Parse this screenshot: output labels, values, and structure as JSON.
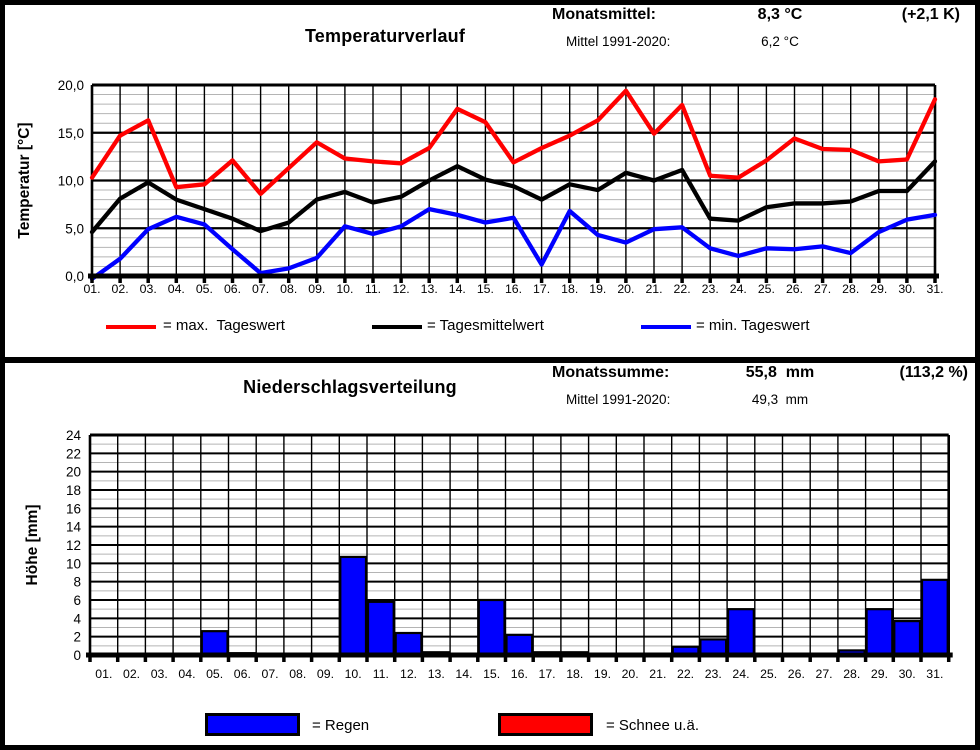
{
  "temperature_panel": {
    "title": "Temperaturverlauf",
    "stats": {
      "label": "Monatsmittel:",
      "value": "8,3 °C",
      "anomaly": "(+2,1 K)",
      "ref_label": "Mittel 1991-2020:",
      "ref_value": "6,2 °C"
    },
    "legend": {
      "max_label": "= max.  Tageswert",
      "mean_label": "= Tagesmittelwert",
      "min_label": "= min. Tageswert",
      "max_color": "#ff0000",
      "mean_color": "#000000",
      "min_color": "#0000ff"
    }
  },
  "precipitation_panel": {
    "title": "Niederschlagsverteilung",
    "stats": {
      "label": "Monatssumme:",
      "value": "55,8  mm",
      "anomaly": "(113,2 %)",
      "ref_label": "Mittel 1991-2020:",
      "ref_value": "49,3  mm"
    },
    "legend": {
      "rain_label": "= Regen",
      "snow_label": "= Schnee u.ä.",
      "rain_color": "#0000ff",
      "snow_color": "#ff0000"
    }
  },
  "chart_data": [
    {
      "type": "line",
      "title": "Temperaturverlauf",
      "xlabel": "",
      "ylabel": "Temperatur [°C]",
      "ylim": [
        0,
        20
      ],
      "y_major_step": 5,
      "y_minor_step": 1,
      "grid": true,
      "legend_position": "bottom",
      "y_ticks": [
        {
          "v": 0,
          "label": "0,0"
        },
        {
          "v": 5,
          "label": "5,0"
        },
        {
          "v": 10,
          "label": "10,0"
        },
        {
          "v": 15,
          "label": "15,0"
        },
        {
          "v": 20,
          "label": "20,0"
        }
      ],
      "categories": [
        "01.",
        "02.",
        "03.",
        "04.",
        "05.",
        "06.",
        "07.",
        "08.",
        "09.",
        "10.",
        "11.",
        "12.",
        "13.",
        "14.",
        "15.",
        "16.",
        "17.",
        "18.",
        "19.",
        "20.",
        "21.",
        "22.",
        "23.",
        "24.",
        "25.",
        "26.",
        "27.",
        "28.",
        "29.",
        "30.",
        "31."
      ],
      "series": [
        {
          "name": "max. Tageswert",
          "color": "#ff0000",
          "values": [
            10.3,
            14.7,
            16.3,
            9.3,
            9.6,
            12.1,
            8.6,
            11.3,
            14.0,
            12.3,
            12.0,
            11.8,
            13.4,
            17.5,
            16.1,
            11.9,
            13.4,
            14.7,
            16.3,
            19.4,
            14.9,
            17.9,
            10.5,
            10.3,
            12.1,
            14.4,
            13.3,
            13.2,
            12.0,
            12.2,
            18.5
          ]
        },
        {
          "name": "Tagesmittelwert",
          "color": "#000000",
          "values": [
            4.6,
            8.1,
            9.8,
            8.0,
            7.0,
            6.0,
            4.7,
            5.6,
            8.0,
            8.8,
            7.7,
            8.3,
            10.0,
            11.5,
            10.1,
            9.4,
            8.0,
            9.6,
            9.0,
            10.8,
            10.0,
            11.1,
            6.0,
            5.8,
            7.2,
            7.6,
            7.6,
            7.8,
            8.9,
            8.9,
            12.0
          ]
        },
        {
          "name": "min. Tageswert",
          "color": "#0000ff",
          "values": [
            -0.3,
            1.8,
            4.9,
            6.2,
            5.4,
            2.8,
            0.3,
            0.8,
            1.9,
            5.2,
            4.4,
            5.2,
            7.0,
            6.4,
            5.6,
            6.1,
            1.2,
            6.8,
            4.3,
            3.5,
            4.9,
            5.1,
            2.9,
            2.1,
            2.9,
            2.8,
            3.1,
            2.4,
            4.6,
            5.9,
            6.4
          ]
        }
      ]
    },
    {
      "type": "bar",
      "title": "Niederschlagsverteilung",
      "xlabel": "",
      "ylabel": "Höhe [mm]",
      "ylim": [
        0,
        24
      ],
      "y_major_step": 2,
      "y_minor_step": 1,
      "grid": true,
      "legend_position": "bottom",
      "y_ticks": [
        {
          "v": 0,
          "label": "0"
        },
        {
          "v": 2,
          "label": "2"
        },
        {
          "v": 4,
          "label": "4"
        },
        {
          "v": 6,
          "label": "6"
        },
        {
          "v": 8,
          "label": "8"
        },
        {
          "v": 10,
          "label": "10"
        },
        {
          "v": 12,
          "label": "12"
        },
        {
          "v": 14,
          "label": "14"
        },
        {
          "v": 16,
          "label": "16"
        },
        {
          "v": 18,
          "label": "18"
        },
        {
          "v": 20,
          "label": "20"
        },
        {
          "v": 22,
          "label": "22"
        },
        {
          "v": 24,
          "label": "24"
        }
      ],
      "categories": [
        "01.",
        "02.",
        "03.",
        "04.",
        "05.",
        "06.",
        "07.",
        "08.",
        "09.",
        "10.",
        "11.",
        "12.",
        "13.",
        "14.",
        "15.",
        "16.",
        "17.",
        "18.",
        "19.",
        "20.",
        "21.",
        "22.",
        "23.",
        "24.",
        "25.",
        "26.",
        "27.",
        "28.",
        "29.",
        "30.",
        "31."
      ],
      "bar_color": "#0000ff",
      "values": [
        0,
        0,
        0,
        0,
        2.6,
        0.2,
        0,
        0,
        0,
        10.7,
        5.8,
        2.4,
        0.3,
        0,
        6.0,
        2.2,
        0.3,
        0.3,
        0,
        0,
        0,
        0.9,
        1.7,
        5.0,
        0,
        0,
        0,
        0.5,
        5.0,
        3.7,
        8.2
      ]
    }
  ]
}
